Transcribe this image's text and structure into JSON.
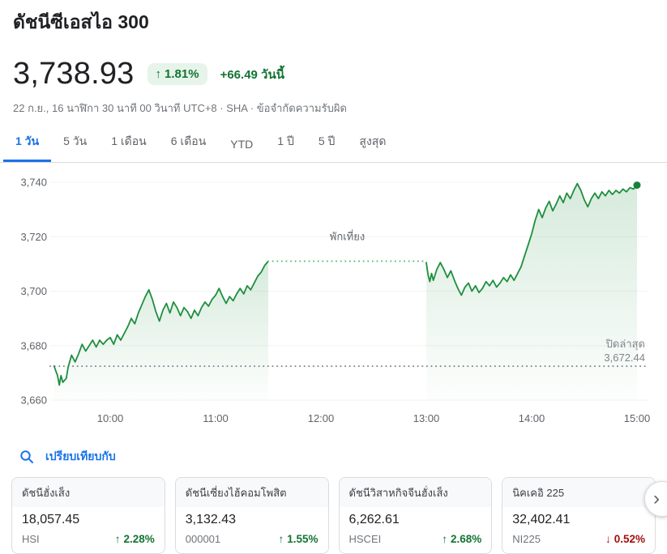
{
  "page": {
    "title": "ดัชนีซีเอสไอ 300"
  },
  "quote": {
    "price": "3,738.93",
    "up_arrow": "↑",
    "change_percent": "1.81%",
    "change_today": "+66.49 วันนี้",
    "datetime": "22 ก.ย., 16 นาฬิกา 30 นาที 00 วินาที UTC+8 · SHA ·",
    "disclaimer": "ข้อจำกัดความรับผิด"
  },
  "tabs": [
    {
      "label": "1 วัน",
      "active": true
    },
    {
      "label": "5 วัน",
      "active": false
    },
    {
      "label": "1 เดือน",
      "active": false
    },
    {
      "label": "6 เดือน",
      "active": false
    },
    {
      "label": "YTD",
      "active": false
    },
    {
      "label": "1 ปี",
      "active": false
    },
    {
      "label": "5 ปี",
      "active": false
    },
    {
      "label": "สูงสุด",
      "active": false
    }
  ],
  "chart_data": {
    "type": "line",
    "title": "CSI 300 intraday",
    "ylim": [
      3660,
      3740
    ],
    "y_ticks": [
      "3,740",
      "3,720",
      "3,700",
      "3,680",
      "3,660"
    ],
    "y_tick_values": [
      3740,
      3720,
      3700,
      3680,
      3660
    ],
    "x_ticks": [
      "10:00",
      "11:00",
      "12:00",
      "13:00",
      "14:00",
      "15:00"
    ],
    "x_tick_minutes": [
      600,
      660,
      720,
      780,
      840,
      900
    ],
    "line_color": "#1e8e3e",
    "dot_color": "#188038",
    "lunch_line_color": "#5bb974",
    "prev_close_line_color": "#80868b",
    "grid_color": "#f1f3f4",
    "lunch_break": {
      "label": "พักเที่ยง",
      "from": 690,
      "to": 780,
      "value": 3711
    },
    "previous_close": {
      "label": "ปิดล่าสุด",
      "value": 3672.44,
      "value_label": "3,672.44"
    },
    "last_point": {
      "time": 900,
      "value": 3738.93
    },
    "sessions": [
      {
        "name": "morning",
        "points": [
          [
            568,
            3672.5
          ],
          [
            570,
            3669
          ],
          [
            571,
            3665.5
          ],
          [
            572,
            3669
          ],
          [
            573,
            3666.5
          ],
          [
            575,
            3668
          ],
          [
            576,
            3672
          ],
          [
            578,
            3676.5
          ],
          [
            580,
            3674
          ],
          [
            582,
            3677
          ],
          [
            584,
            3680.5
          ],
          [
            586,
            3678
          ],
          [
            588,
            3680
          ],
          [
            590,
            3682
          ],
          [
            592,
            3679.5
          ],
          [
            594,
            3682
          ],
          [
            596,
            3680.5
          ],
          [
            598,
            3682
          ],
          [
            600,
            3683
          ],
          [
            602,
            3680.5
          ],
          [
            604,
            3684
          ],
          [
            606,
            3682
          ],
          [
            608,
            3684.5
          ],
          [
            610,
            3687
          ],
          [
            612,
            3690
          ],
          [
            614,
            3688
          ],
          [
            616,
            3692
          ],
          [
            618,
            3695
          ],
          [
            620,
            3698
          ],
          [
            622,
            3700.5
          ],
          [
            624,
            3697
          ],
          [
            626,
            3692.5
          ],
          [
            628,
            3689
          ],
          [
            630,
            3693
          ],
          [
            632,
            3695.5
          ],
          [
            634,
            3692
          ],
          [
            636,
            3696
          ],
          [
            638,
            3694
          ],
          [
            640,
            3691
          ],
          [
            642,
            3694
          ],
          [
            644,
            3692.5
          ],
          [
            646,
            3690
          ],
          [
            648,
            3693
          ],
          [
            650,
            3691
          ],
          [
            652,
            3694
          ],
          [
            654,
            3696
          ],
          [
            656,
            3694.5
          ],
          [
            658,
            3697
          ],
          [
            660,
            3698.5
          ],
          [
            662,
            3701
          ],
          [
            664,
            3698
          ],
          [
            666,
            3695.5
          ],
          [
            668,
            3698
          ],
          [
            670,
            3696.5
          ],
          [
            672,
            3699
          ],
          [
            674,
            3701
          ],
          [
            676,
            3699
          ],
          [
            678,
            3702
          ],
          [
            680,
            3700.5
          ],
          [
            682,
            3703
          ],
          [
            684,
            3705.5
          ],
          [
            686,
            3707
          ],
          [
            688,
            3709.5
          ],
          [
            690,
            3711
          ]
        ]
      },
      {
        "name": "afternoon",
        "points": [
          [
            780,
            3710.5
          ],
          [
            781,
            3706
          ],
          [
            782,
            3703.5
          ],
          [
            783,
            3706.5
          ],
          [
            784,
            3704
          ],
          [
            786,
            3708
          ],
          [
            788,
            3710.5
          ],
          [
            790,
            3708
          ],
          [
            792,
            3705
          ],
          [
            794,
            3707.5
          ],
          [
            796,
            3704
          ],
          [
            798,
            3701
          ],
          [
            800,
            3698.5
          ],
          [
            802,
            3701.5
          ],
          [
            804,
            3703
          ],
          [
            806,
            3700
          ],
          [
            808,
            3702
          ],
          [
            810,
            3699.5
          ],
          [
            812,
            3701
          ],
          [
            814,
            3703.5
          ],
          [
            816,
            3702
          ],
          [
            818,
            3704
          ],
          [
            820,
            3701.5
          ],
          [
            822,
            3703
          ],
          [
            824,
            3705
          ],
          [
            826,
            3703.5
          ],
          [
            828,
            3706
          ],
          [
            830,
            3704
          ],
          [
            832,
            3706.5
          ],
          [
            834,
            3709
          ],
          [
            836,
            3713
          ],
          [
            838,
            3717
          ],
          [
            840,
            3721
          ],
          [
            842,
            3726
          ],
          [
            844,
            3730
          ],
          [
            846,
            3727
          ],
          [
            848,
            3730.5
          ],
          [
            850,
            3733
          ],
          [
            852,
            3729.5
          ],
          [
            854,
            3732
          ],
          [
            856,
            3735
          ],
          [
            858,
            3732.5
          ],
          [
            860,
            3736
          ],
          [
            862,
            3734
          ],
          [
            864,
            3737
          ],
          [
            866,
            3739.5
          ],
          [
            868,
            3737
          ],
          [
            870,
            3733.5
          ],
          [
            872,
            3731
          ],
          [
            874,
            3734
          ],
          [
            876,
            3736
          ],
          [
            878,
            3734
          ],
          [
            880,
            3736.5
          ],
          [
            882,
            3735
          ],
          [
            884,
            3737
          ],
          [
            886,
            3735.5
          ],
          [
            888,
            3737
          ],
          [
            890,
            3736
          ],
          [
            892,
            3737.5
          ],
          [
            894,
            3736.5
          ],
          [
            896,
            3738
          ],
          [
            898,
            3737.5
          ],
          [
            900,
            3738.93
          ]
        ]
      }
    ]
  },
  "compare": {
    "label": "เปรียบเทียบกับ"
  },
  "cards": [
    {
      "name": "ดัชนีฮั่งเส็ง",
      "value": "18,057.45",
      "ticker": "HSI",
      "arrow": "↑",
      "change": "2.28%",
      "direction": "up"
    },
    {
      "name": "ดัชนีเซี่ยงไฮ้คอมโพสิต",
      "value": "3,132.43",
      "ticker": "000001",
      "arrow": "↑",
      "change": "1.55%",
      "direction": "up"
    },
    {
      "name": "ดัชนีวิสาหกิจจีนฮั่งเส็ง",
      "value": "6,262.61",
      "ticker": "HSCEI",
      "arrow": "↑",
      "change": "2.68%",
      "direction": "up"
    },
    {
      "name": "นิคเคอิ 225",
      "value": "32,402.41",
      "ticker": "NI225",
      "arrow": "↓",
      "change": "0.52%",
      "direction": "down"
    }
  ],
  "misc": {
    "chevron_right": "›"
  },
  "colors": {
    "accent_blue": "#1a73e8",
    "green_text": "#137333",
    "green_badge_bg": "#e6f4ea",
    "red_text": "#a50e0e",
    "gray_text": "#5f6368"
  }
}
